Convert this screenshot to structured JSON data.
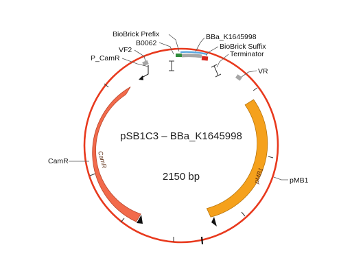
{
  "plasmid": {
    "title": "pSB1C3 – BBa_K1645998",
    "size_label": "2150 bp"
  },
  "features": {
    "biobrick_prefix": "BioBrick Prefix",
    "bba_part": "BBa_K1645998",
    "b0062": "B0062",
    "biobrick_suffix": "BioBrick Suffix",
    "vf2": "VF2",
    "terminator": "Terminator",
    "p_camr": "P_CamR",
    "vr": "VR",
    "camr": "CamR",
    "camr_inner": "CamR",
    "pmb1": "pMB1",
    "pmb1_inner": "pMB1"
  },
  "colors": {
    "backbone": "#e8391d",
    "camr": "#f26a4b",
    "pmb1": "#f5a11c",
    "part_blue": "#5aa8e0",
    "prefix_green": "#2e8b3a",
    "suffix_red": "#d7261e",
    "gray_feature": "#a6a6a6"
  }
}
